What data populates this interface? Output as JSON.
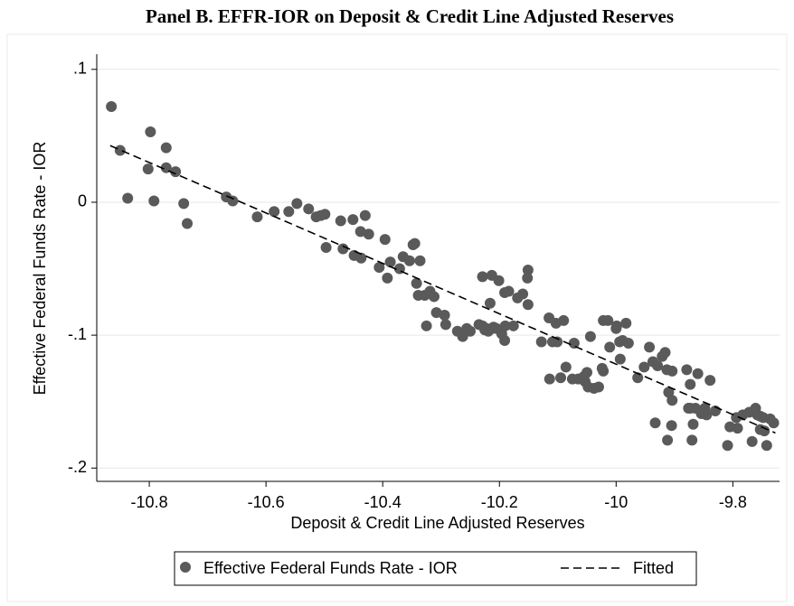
{
  "chart_data": {
    "type": "scatter",
    "title": "Panel B. EFFR-IOR on Deposit & Credit Line Adjusted Reserves",
    "x_label": "Deposit & Credit Line Adjusted Reserves",
    "y_label": "Effective Federal Funds Rate - IOR",
    "xlim": [
      -10.89,
      -9.72
    ],
    "ylim": [
      -0.21,
      0.125
    ],
    "xticks": [
      -10.8,
      -10.6,
      -10.4,
      -10.2,
      -10,
      -9.8
    ],
    "yticks": [
      {
        "value": 0.1,
        "label": ".1"
      },
      0,
      {
        "value": -0.1,
        "label": "-.1"
      },
      {
        "value": -0.2,
        "label": "-.2"
      }
    ],
    "grid": true,
    "legend": "bottom",
    "series": [
      {
        "name": "Effective Federal Funds Rate - IOR",
        "color": "#5a5a5a",
        "x": [
          -10.865,
          -10.85,
          -10.837,
          -10.798,
          -10.802,
          -10.792,
          -10.771,
          -10.771,
          -10.755,
          -10.741,
          -10.735,
          -10.668,
          -10.657,
          -10.615,
          -10.586,
          -10.561,
          -10.547,
          -10.527,
          -10.514,
          -10.506,
          -10.499,
          -10.497,
          -10.472,
          -10.468,
          -10.451,
          -10.449,
          -10.438,
          -10.437,
          -10.43,
          -10.424,
          -10.406,
          -10.396,
          -10.392,
          -10.387,
          -10.371,
          -10.365,
          -10.354,
          -10.348,
          -10.345,
          -10.342,
          -10.339,
          -10.336,
          -10.328,
          -10.325,
          -10.319,
          -10.312,
          -10.308,
          -10.294,
          -10.292,
          -10.272,
          -10.263,
          -10.256,
          -10.25,
          -10.235,
          -10.229,
          -10.225,
          -10.222,
          -10.219,
          -10.213,
          -10.21,
          -10.205,
          -10.229,
          -10.213,
          -10.216,
          -10.201,
          -10.196,
          -10.191,
          -10.191,
          -10.19,
          -10.184,
          -10.176,
          -10.169,
          -10.16,
          -10.152,
          -10.151,
          -10.151,
          -10.128,
          -10.115,
          -10.114,
          -10.109,
          -10.103,
          -10.101,
          -10.095,
          -10.09,
          -10.086,
          -10.075,
          -10.072,
          -10.065,
          -10.055,
          -10.053,
          -10.048,
          -10.05,
          -10.044,
          -10.038,
          -10.03,
          -10.024,
          -10.022,
          -10.022,
          -10.014,
          -10.011,
          -10,
          -9.999,
          -9.994,
          -9.993,
          -9.989,
          -9.983,
          -9.979,
          -9.963,
          -9.952,
          -9.943,
          -9.937,
          -9.933,
          -9.929,
          -9.921,
          -9.916,
          -9.913,
          -9.912,
          -9.91,
          -9.905,
          -9.904,
          -9.904,
          -9.879,
          -9.876,
          -9.873,
          -9.873,
          -9.87,
          -9.868,
          -9.864,
          -9.86,
          -9.854,
          -9.848,
          -9.845,
          -9.839,
          -9.83,
          -9.809,
          -9.805,
          -9.794,
          -9.792,
          -9.783,
          -9.772,
          -9.767,
          -9.761,
          -9.758,
          -9.753,
          -9.748,
          -9.746,
          -9.742,
          -9.736,
          -9.73,
          -9.753
        ],
        "values": [
          0.072,
          0.039,
          0.003,
          0.053,
          0.025,
          0.001,
          0.041,
          0.026,
          0.023,
          -0.001,
          -0.016,
          0.004,
          0.001,
          -0.011,
          -0.007,
          -0.007,
          -0.001,
          -0.005,
          -0.011,
          -0.01,
          -0.009,
          -0.034,
          -0.014,
          -0.035,
          -0.013,
          -0.04,
          -0.022,
          -0.042,
          -0.01,
          -0.024,
          -0.049,
          -0.028,
          -0.057,
          -0.045,
          -0.05,
          -0.041,
          -0.044,
          -0.032,
          -0.031,
          -0.061,
          -0.07,
          -0.044,
          -0.07,
          -0.093,
          -0.067,
          -0.071,
          -0.083,
          -0.085,
          -0.092,
          -0.097,
          -0.101,
          -0.095,
          -0.097,
          -0.092,
          -0.093,
          -0.096,
          -0.095,
          -0.097,
          -0.095,
          -0.094,
          -0.095,
          -0.056,
          -0.055,
          -0.076,
          -0.059,
          -0.099,
          -0.104,
          -0.068,
          -0.093,
          -0.067,
          -0.093,
          -0.072,
          -0.069,
          -0.057,
          -0.051,
          -0.077,
          -0.105,
          -0.087,
          -0.133,
          -0.105,
          -0.091,
          -0.105,
          -0.132,
          -0.089,
          -0.124,
          -0.133,
          -0.106,
          -0.133,
          -0.131,
          -0.135,
          -0.139,
          -0.128,
          -0.101,
          -0.14,
          -0.139,
          -0.125,
          -0.089,
          -0.127,
          -0.089,
          -0.109,
          -0.095,
          -0.093,
          -0.105,
          -0.118,
          -0.104,
          -0.091,
          -0.106,
          -0.132,
          -0.124,
          -0.109,
          -0.12,
          -0.166,
          -0.123,
          -0.116,
          -0.113,
          -0.126,
          -0.179,
          -0.143,
          -0.168,
          -0.149,
          -0.127,
          -0.126,
          -0.155,
          -0.155,
          -0.137,
          -0.179,
          -0.167,
          -0.155,
          -0.129,
          -0.159,
          -0.155,
          -0.16,
          -0.134,
          -0.157,
          -0.183,
          -0.169,
          -0.162,
          -0.17,
          -0.16,
          -0.158,
          -0.18,
          -0.155,
          -0.16,
          -0.161,
          -0.162,
          -0.172,
          -0.183,
          -0.163,
          -0.166,
          -0.171
        ]
      },
      {
        "name": "Fitted",
        "color": "#000000",
        "line_style": "dashed",
        "x": [
          -10.867,
          -9.727
        ],
        "values": [
          0.0426,
          -0.1736
        ]
      }
    ]
  }
}
